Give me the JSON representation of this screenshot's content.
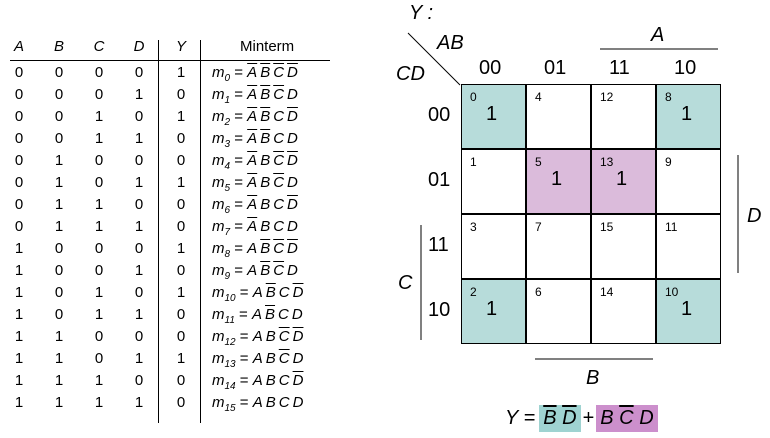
{
  "truth_table": {
    "headers": [
      "A",
      "B",
      "C",
      "D",
      "Y"
    ],
    "minterm_header": "Minterm",
    "rows": [
      {
        "a": "0",
        "b": "0",
        "c": "0",
        "d": "0",
        "y": "1",
        "m": "0",
        "t": [
          "A",
          "B",
          "C",
          "D"
        ],
        "bar": [
          1,
          1,
          1,
          1
        ]
      },
      {
        "a": "0",
        "b": "0",
        "c": "0",
        "d": "1",
        "y": "0",
        "m": "1",
        "t": [
          "A",
          "B",
          "C",
          "D"
        ],
        "bar": [
          1,
          1,
          1,
          0
        ]
      },
      {
        "a": "0",
        "b": "0",
        "c": "1",
        "d": "0",
        "y": "1",
        "m": "2",
        "t": [
          "A",
          "B",
          "C",
          "D"
        ],
        "bar": [
          1,
          1,
          0,
          1
        ]
      },
      {
        "a": "0",
        "b": "0",
        "c": "1",
        "d": "1",
        "y": "0",
        "m": "3",
        "t": [
          "A",
          "B",
          "C",
          "D"
        ],
        "bar": [
          1,
          1,
          0,
          0
        ]
      },
      {
        "a": "0",
        "b": "1",
        "c": "0",
        "d": "0",
        "y": "0",
        "m": "4",
        "t": [
          "A",
          "B",
          "C",
          "D"
        ],
        "bar": [
          1,
          0,
          1,
          1
        ]
      },
      {
        "a": "0",
        "b": "1",
        "c": "0",
        "d": "1",
        "y": "1",
        "m": "5",
        "t": [
          "A",
          "B",
          "C",
          "D"
        ],
        "bar": [
          1,
          0,
          1,
          0
        ]
      },
      {
        "a": "0",
        "b": "1",
        "c": "1",
        "d": "0",
        "y": "0",
        "m": "6",
        "t": [
          "A",
          "B",
          "C",
          "D"
        ],
        "bar": [
          1,
          0,
          0,
          1
        ]
      },
      {
        "a": "0",
        "b": "1",
        "c": "1",
        "d": "1",
        "y": "0",
        "m": "7",
        "t": [
          "A",
          "B",
          "C",
          "D"
        ],
        "bar": [
          1,
          0,
          0,
          0
        ]
      },
      {
        "a": "1",
        "b": "0",
        "c": "0",
        "d": "0",
        "y": "1",
        "m": "8",
        "t": [
          "A",
          "B",
          "C",
          "D"
        ],
        "bar": [
          0,
          1,
          1,
          1
        ]
      },
      {
        "a": "1",
        "b": "0",
        "c": "0",
        "d": "1",
        "y": "0",
        "m": "9",
        "t": [
          "A",
          "B",
          "C",
          "D"
        ],
        "bar": [
          0,
          1,
          1,
          0
        ]
      },
      {
        "a": "1",
        "b": "0",
        "c": "1",
        "d": "0",
        "y": "1",
        "m": "10",
        "t": [
          "A",
          "B",
          "C",
          "D"
        ],
        "bar": [
          0,
          1,
          0,
          1
        ]
      },
      {
        "a": "1",
        "b": "0",
        "c": "1",
        "d": "1",
        "y": "0",
        "m": "11",
        "t": [
          "A",
          "B",
          "C",
          "D"
        ],
        "bar": [
          0,
          1,
          0,
          0
        ]
      },
      {
        "a": "1",
        "b": "1",
        "c": "0",
        "d": "0",
        "y": "0",
        "m": "12",
        "t": [
          "A",
          "B",
          "C",
          "D"
        ],
        "bar": [
          0,
          0,
          1,
          1
        ]
      },
      {
        "a": "1",
        "b": "1",
        "c": "0",
        "d": "1",
        "y": "1",
        "m": "13",
        "t": [
          "A",
          "B",
          "C",
          "D"
        ],
        "bar": [
          0,
          0,
          1,
          0
        ]
      },
      {
        "a": "1",
        "b": "1",
        "c": "1",
        "d": "0",
        "y": "0",
        "m": "14",
        "t": [
          "A",
          "B",
          "C",
          "D"
        ],
        "bar": [
          0,
          0,
          0,
          1
        ]
      },
      {
        "a": "1",
        "b": "1",
        "c": "1",
        "d": "1",
        "y": "0",
        "m": "15",
        "t": [
          "A",
          "B",
          "C",
          "D"
        ],
        "bar": [
          0,
          0,
          0,
          0
        ]
      }
    ]
  },
  "kmap": {
    "output_label": "Y :",
    "row_var": "CD",
    "col_var": "AB",
    "col_labels": [
      "00",
      "01",
      "11",
      "10"
    ],
    "row_labels": [
      "00",
      "01",
      "11",
      "10"
    ],
    "cells": [
      [
        {
          "idx": "0",
          "val": "1",
          "color": "teal"
        },
        {
          "idx": "4",
          "val": "",
          "color": ""
        },
        {
          "idx": "12",
          "val": "",
          "color": ""
        },
        {
          "idx": "8",
          "val": "1",
          "color": "teal"
        }
      ],
      [
        {
          "idx": "1",
          "val": "",
          "color": ""
        },
        {
          "idx": "5",
          "val": "1",
          "color": "pink"
        },
        {
          "idx": "13",
          "val": "1",
          "color": "pink"
        },
        {
          "idx": "9",
          "val": "",
          "color": ""
        }
      ],
      [
        {
          "idx": "3",
          "val": "",
          "color": ""
        },
        {
          "idx": "7",
          "val": "",
          "color": ""
        },
        {
          "idx": "15",
          "val": "",
          "color": ""
        },
        {
          "idx": "11",
          "val": "",
          "color": ""
        }
      ],
      [
        {
          "idx": "2",
          "val": "1",
          "color": "teal"
        },
        {
          "idx": "6",
          "val": "",
          "color": ""
        },
        {
          "idx": "14",
          "val": "",
          "color": ""
        },
        {
          "idx": "10",
          "val": "1",
          "color": "teal"
        }
      ]
    ],
    "var_a": "A",
    "var_b": "B",
    "var_c": "C",
    "var_d": "D"
  },
  "equation": {
    "lhs": "Y =",
    "term1": [
      "B",
      "D"
    ],
    "plus": "+",
    "term2": [
      "B",
      "C",
      "D"
    ],
    "term2_bar": [
      0,
      1,
      0
    ]
  },
  "colors": {
    "teal": "#b7dcda",
    "pink": "#dbbbdb",
    "teal_term": "#9fd3d1",
    "pink_term": "#cc8fcc"
  }
}
